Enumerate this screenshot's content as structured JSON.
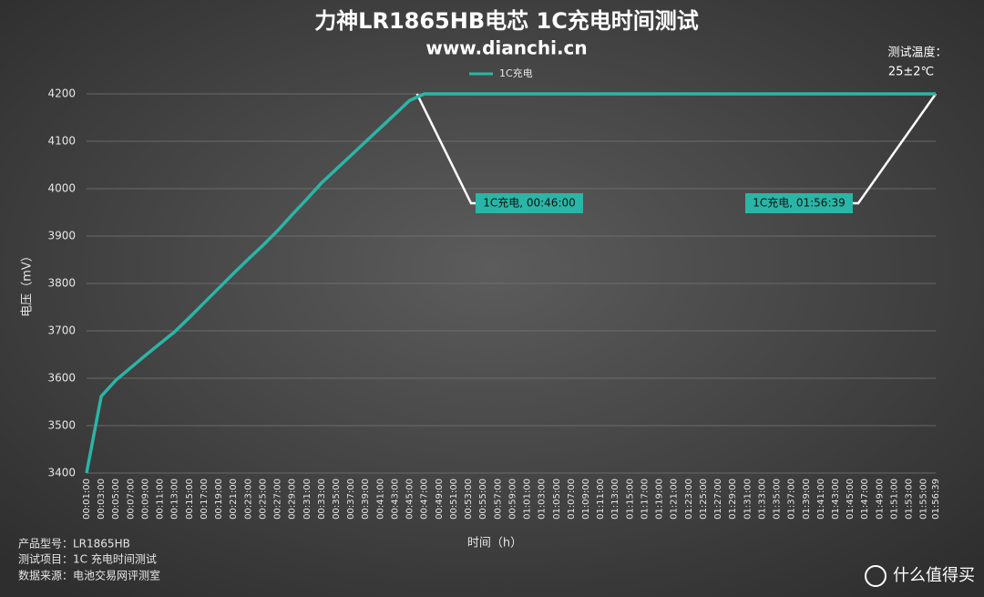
{
  "chart_data": {
    "type": "line",
    "title": "力神LR1865HB电芯 1C充电时间测试",
    "subtitle": "www.dianchi.cn",
    "temperature_label": "测试温度：",
    "temperature": "25±2℃",
    "y_label": "电压（mV）",
    "x_label": "时间（h）",
    "categories": [
      "00:01:00",
      "00:03:00",
      "00:05:00",
      "00:07:00",
      "00:09:00",
      "00:11:00",
      "00:13:00",
      "00:15:00",
      "00:17:00",
      "00:19:00",
      "00:21:00",
      "00:23:00",
      "00:25:00",
      "00:27:00",
      "00:29:00",
      "00:31:00",
      "00:33:00",
      "00:35:00",
      "00:37:00",
      "00:39:00",
      "00:41:00",
      "00:43:00",
      "00:45:00",
      "00:47:00",
      "00:49:00",
      "00:51:00",
      "00:53:00",
      "00:55:00",
      "00:57:00",
      "00:59:00",
      "01:01:00",
      "01:03:00",
      "01:05:00",
      "01:07:00",
      "01:09:00",
      "01:11:00",
      "01:13:00",
      "01:15:00",
      "01:17:00",
      "01:19:00",
      "01:21:00",
      "01:23:00",
      "01:25:00",
      "01:27:00",
      "01:29:00",
      "01:31:00",
      "01:33:00",
      "01:35:00",
      "01:37:00",
      "01:39:00",
      "01:41:00",
      "01:43:00",
      "01:45:00",
      "01:47:00",
      "01:49:00",
      "01:51:00",
      "01:53:00",
      "01:55:00",
      "01:56:39"
    ],
    "series": [
      {
        "name": "1C充电",
        "color": "#2bb5a6",
        "values": [
          3400,
          3562,
          3596,
          3622,
          3648,
          3673,
          3698,
          3728,
          3759,
          3790,
          3821,
          3851,
          3880,
          3911,
          3945,
          3978,
          4012,
          4041,
          4070,
          4099,
          4128,
          4157,
          4186,
          4200,
          4200,
          4200,
          4200,
          4200,
          4200,
          4200,
          4200,
          4200,
          4200,
          4200,
          4200,
          4200,
          4200,
          4200,
          4200,
          4200,
          4200,
          4200,
          4200,
          4200,
          4200,
          4200,
          4200,
          4200,
          4200,
          4200,
          4200,
          4200,
          4200,
          4200,
          4200,
          4200,
          4200,
          4200,
          4200
        ]
      }
    ],
    "ylim": [
      3400,
      4200
    ],
    "yticks": [
      3400,
      3500,
      3600,
      3700,
      3800,
      3900,
      4000,
      4100,
      4200
    ],
    "grid": true,
    "annotations": [
      {
        "text": "1C充电, 00:46:00"
      },
      {
        "text": "1C充电, 01:56:39"
      }
    ],
    "footer": [
      "产品型号：LR1865HB",
      "测试项目：1C 充电时间测试",
      "数据来源：电池交易网评测室"
    ],
    "watermark": "什么值得买"
  }
}
